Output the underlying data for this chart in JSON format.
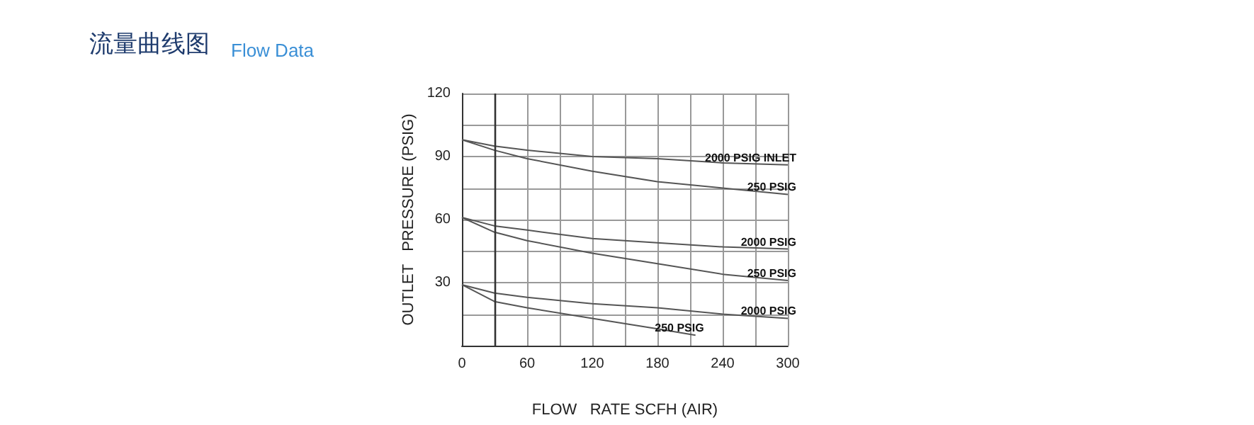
{
  "chart_data": {
    "type": "line",
    "title": "流量曲线图",
    "subtitle": "Flow Data",
    "xlabel": "FLOW   RATE SCFH (AIR)",
    "ylabel": "OUTLET   PRESSURE (PSIG)",
    "xlim": [
      0,
      300
    ],
    "xticks": [
      0,
      {
        "value": 30,
        "label": null
      },
      60,
      {
        "value": 90,
        "label": null
      },
      120,
      {
        "value": 150,
        "label": null
      },
      180,
      {
        "value": 210,
        "label": null
      },
      240,
      {
        "value": 270,
        "label": null
      },
      300
    ],
    "ylim": [
      0,
      120
    ],
    "yticks": [
      {
        "value": 0,
        "label": null
      },
      {
        "value": 15,
        "label": null
      },
      30,
      {
        "value": 45,
        "label": null
      },
      60,
      {
        "value": 75,
        "label": null
      },
      90,
      {
        "value": 105,
        "label": null
      },
      120
    ],
    "grid": true,
    "marker": "none",
    "line_style": "solid",
    "ref_lines": [
      {
        "axis": "x",
        "value": 30,
        "color": "#333333"
      }
    ],
    "series": [
      {
        "name": "2000 PSIG INLET",
        "color": "#555555",
        "x": [
          0,
          30,
          60,
          120,
          180,
          240,
          300
        ],
        "values": [
          98,
          95,
          93,
          90,
          89,
          87,
          86
        ]
      },
      {
        "name": "250 PSIG",
        "color": "#555555",
        "x": [
          0,
          30,
          60,
          120,
          180,
          240,
          300
        ],
        "values": [
          98,
          93,
          89,
          83,
          78,
          75,
          72
        ]
      },
      {
        "name": "2000 PSIG",
        "color": "#555555",
        "x": [
          0,
          30,
          60,
          120,
          180,
          240,
          300
        ],
        "values": [
          61,
          57,
          55,
          51,
          49,
          47,
          46
        ]
      },
      {
        "name": "250 PSIG",
        "color": "#555555",
        "x": [
          0,
          30,
          60,
          120,
          180,
          240,
          300
        ],
        "values": [
          61,
          54,
          50,
          44,
          39,
          34,
          31
        ]
      },
      {
        "name": "2000 PSIG",
        "color": "#555555",
        "x": [
          0,
          30,
          60,
          120,
          180,
          240,
          300
        ],
        "values": [
          29,
          25,
          23,
          20,
          18,
          15,
          13
        ]
      },
      {
        "name": "250 PSIG",
        "color": "#555555",
        "x": [
          0,
          30,
          60,
          120,
          180,
          215
        ],
        "values": [
          29,
          21,
          18,
          13,
          8,
          5
        ]
      }
    ]
  }
}
